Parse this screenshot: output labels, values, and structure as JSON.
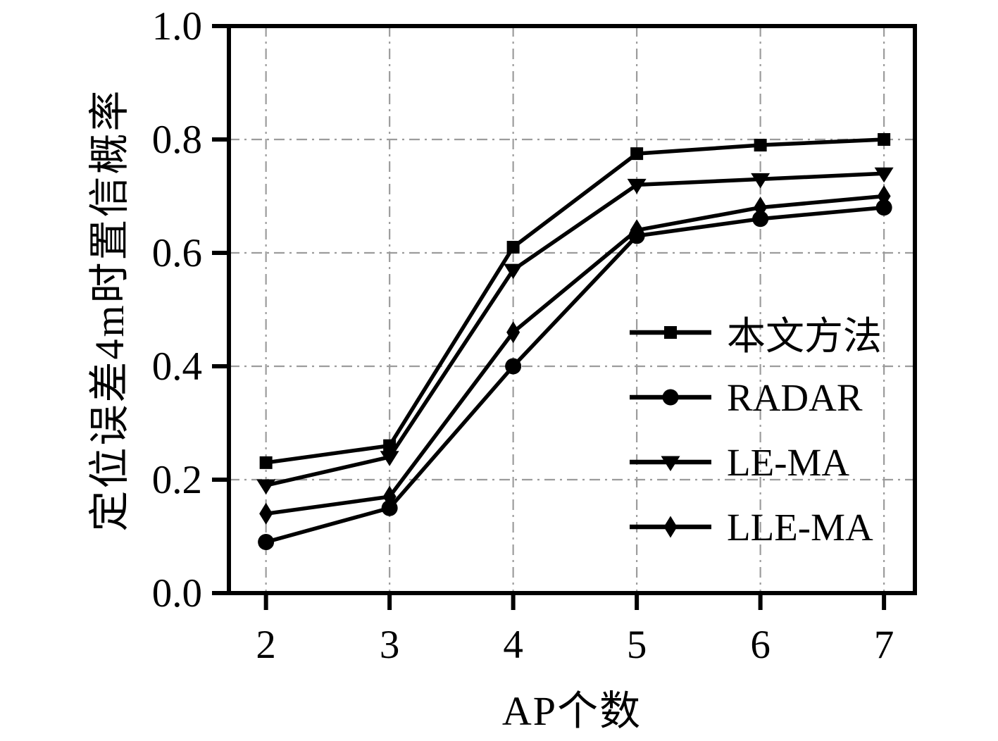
{
  "figure": {
    "background": "#ffffff",
    "series_color": "#000000",
    "grid_color": "#9c9c9c",
    "axis_color": "#000000"
  },
  "chart_data": {
    "type": "line",
    "title": "",
    "xlabel": "AP个数",
    "ylabel": "定位误差4m时置信概率",
    "x": [
      2,
      3,
      4,
      5,
      6,
      7
    ],
    "xlim": [
      1.7,
      7.25
    ],
    "ylim": [
      0.0,
      1.0
    ],
    "x_ticks": [
      2,
      3,
      4,
      5,
      6,
      7
    ],
    "x_tick_labels": [
      "2",
      "3",
      "4",
      "5",
      "6",
      "7"
    ],
    "y_ticks": [
      0.0,
      0.2,
      0.4,
      0.6,
      0.8,
      1.0
    ],
    "y_tick_labels": [
      "0.0",
      "0.2",
      "0.4",
      "0.6",
      "0.8",
      "1.0"
    ],
    "grid": "dash-dot both axes",
    "legend_position": "inside lower right",
    "series": [
      {
        "name": "本文方法",
        "marker": "square",
        "values": [
          0.23,
          0.26,
          0.61,
          0.775,
          0.79,
          0.8
        ]
      },
      {
        "name": "RADAR",
        "marker": "circle",
        "values": [
          0.09,
          0.15,
          0.4,
          0.63,
          0.66,
          0.68
        ]
      },
      {
        "name": "LE-MA",
        "marker": "triangle-down",
        "values": [
          0.19,
          0.24,
          0.57,
          0.72,
          0.73,
          0.74
        ]
      },
      {
        "name": "LLE-MA",
        "marker": "diamond",
        "values": [
          0.14,
          0.17,
          0.46,
          0.64,
          0.68,
          0.7
        ]
      }
    ]
  }
}
